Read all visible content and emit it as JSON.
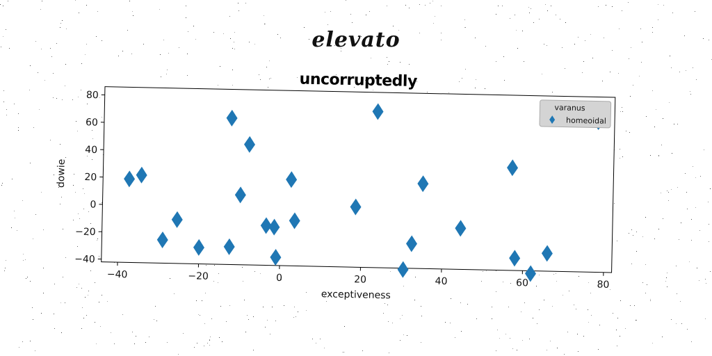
{
  "page": {
    "suptitle": "elevato"
  },
  "chart_data": {
    "type": "scatter",
    "title": "uncorruptedly",
    "xlabel": "exceptiveness",
    "ylabel": "dowie",
    "xlim": [
      -44,
      82
    ],
    "ylim": [
      -42,
      86
    ],
    "xticks": [
      -40,
      -20,
      0,
      20,
      40,
      60,
      80
    ],
    "yticks": [
      -40,
      -20,
      0,
      20,
      40,
      60,
      80
    ],
    "grid": false,
    "legend": {
      "title": "varanus",
      "placement": "top-right",
      "entries": [
        "homeoidal"
      ]
    },
    "series": [
      {
        "name": "homeoidal",
        "marker": "diamond",
        "color": "#1f77b4",
        "points": [
          {
            "x": -37.5,
            "y": 19
          },
          {
            "x": -34.5,
            "y": 22
          },
          {
            "x": -29,
            "y": -25
          },
          {
            "x": -25.5,
            "y": -10
          },
          {
            "x": -20,
            "y": -30
          },
          {
            "x": -12.5,
            "y": 65
          },
          {
            "x": -12.5,
            "y": -29
          },
          {
            "x": -10,
            "y": 9
          },
          {
            "x": -8,
            "y": 46
          },
          {
            "x": -3.5,
            "y": -13
          },
          {
            "x": -1.5,
            "y": -14
          },
          {
            "x": -1,
            "y": -36
          },
          {
            "x": 2.5,
            "y": 21
          },
          {
            "x": 3.5,
            "y": -9
          },
          {
            "x": 18.5,
            "y": 2
          },
          {
            "x": 23.5,
            "y": 72
          },
          {
            "x": 30.5,
            "y": -43
          },
          {
            "x": 32.5,
            "y": -24
          },
          {
            "x": 35,
            "y": 20
          },
          {
            "x": 44.5,
            "y": -12
          },
          {
            "x": 57,
            "y": 33
          },
          {
            "x": 58,
            "y": -33
          },
          {
            "x": 62,
            "y": -44
          },
          {
            "x": 66,
            "y": -29
          },
          {
            "x": 78,
            "y": 68
          }
        ]
      }
    ]
  }
}
